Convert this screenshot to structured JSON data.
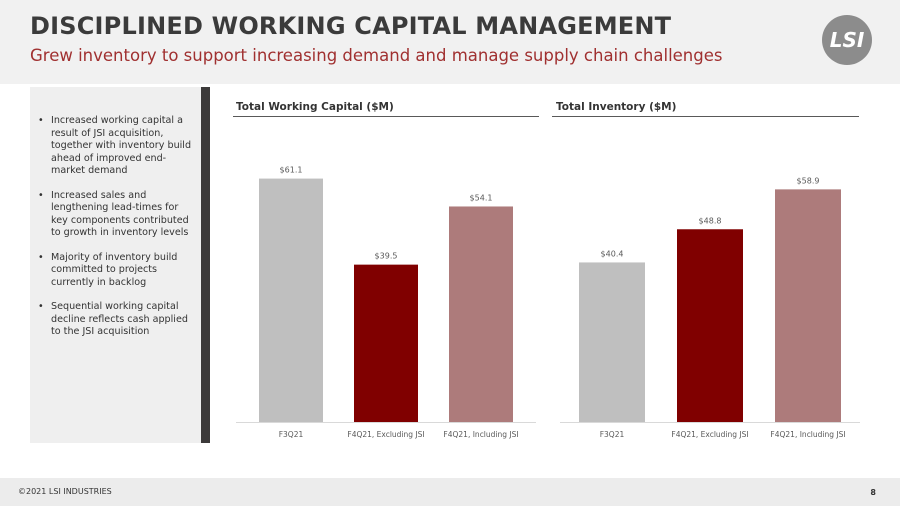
{
  "header": {
    "title": "DISCIPLINED WORKING CAPITAL MANAGEMENT",
    "subtitle": "Grew inventory to support increasing demand and manage supply chain challenges",
    "logo_text": "LSI"
  },
  "sidebar": {
    "bullets": [
      "Increased working capital a result of JSI acquisition, together with inventory build ahead of improved end-market demand",
      "Increased sales and lengthening lead-times for key components contributed to growth in inventory levels",
      "Majority of inventory build committed to projects currently in backlog",
      "Sequential working capital decline reflects cash applied to the JSI acquisition"
    ]
  },
  "colors": {
    "gray": "#bfbfbf",
    "dark_red": "#800000",
    "mauve": "#ad7b7b",
    "title_red": "#a03030"
  },
  "chart_data": [
    {
      "type": "bar",
      "title": "Total Working Capital ($M)",
      "categories": [
        "F3Q21",
        "F4Q21, Excluding JSI",
        "F4Q21, Including JSI"
      ],
      "values": [
        61.1,
        39.5,
        54.1
      ],
      "data_labels": [
        "$61.1",
        "$39.5",
        "$54.1"
      ],
      "bar_colors": [
        "#bfbfbf",
        "#800000",
        "#ad7b7b"
      ],
      "ylim": [
        0,
        62
      ],
      "grid": false,
      "legend": false
    },
    {
      "type": "bar",
      "title": "Total Inventory ($M)",
      "categories": [
        "F3Q21",
        "F4Q21, Excluding JSI",
        "F4Q21, Including JSI"
      ],
      "values": [
        40.4,
        48.8,
        58.9
      ],
      "data_labels": [
        "$40.4",
        "$48.8",
        "$58.9"
      ],
      "bar_colors": [
        "#bfbfbf",
        "#800000",
        "#ad7b7b"
      ],
      "ylim": [
        0,
        59.5
      ],
      "grid": false,
      "legend": false
    }
  ],
  "footer": {
    "copyright": "©2021 LSI INDUSTRIES",
    "page_number": "8"
  }
}
